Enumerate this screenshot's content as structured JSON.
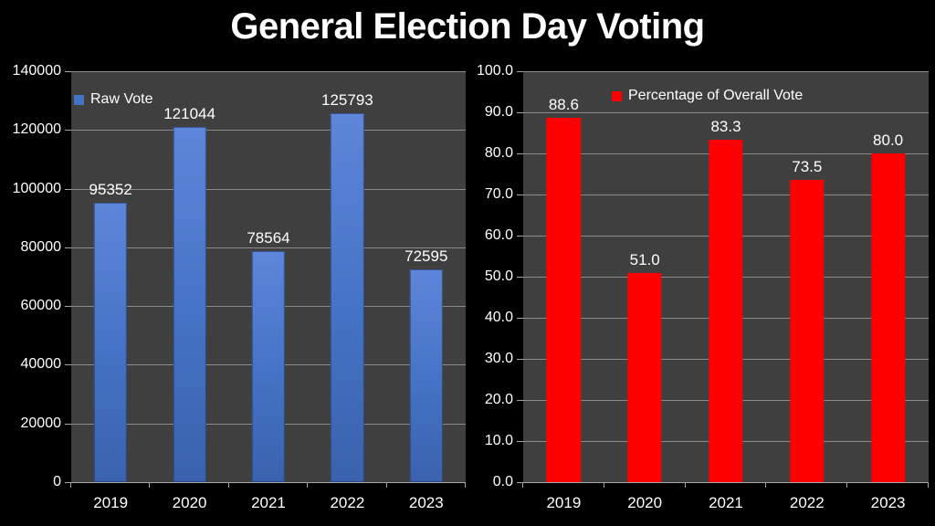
{
  "title": "General Election Day Voting",
  "colors": {
    "background": "#000000",
    "plot_background": "#3f3f3f",
    "gridline": "#8c8c8c",
    "axis": "#a6a6a6",
    "text": "#ffffff",
    "raw_vote_blue": "#4472c4",
    "percentage_red": "#ff0000"
  },
  "chart_data": [
    {
      "type": "bar",
      "name": "raw-vote",
      "legend_label": "Raw Vote",
      "legend_position": "top-left",
      "categories": [
        "2019",
        "2020",
        "2021",
        "2022",
        "2023"
      ],
      "values": [
        95352,
        121044,
        78564,
        125793,
        72595
      ],
      "value_labels": [
        "95352",
        "121044",
        "78564",
        "125793",
        "72595"
      ],
      "xlabel": "",
      "ylabel": "",
      "ylim": [
        0,
        140000
      ],
      "ytick_step": 20000,
      "ytick_labels": [
        "0",
        "20000",
        "40000",
        "60000",
        "80000",
        "100000",
        "120000",
        "140000"
      ],
      "grid": true,
      "fill": {
        "type": "gradient",
        "from": "#5e86da",
        "mid": "#4472c4",
        "to": "#3a62ae",
        "border": "rgba(28,49,92,0.55)"
      }
    },
    {
      "type": "bar",
      "name": "percentage-of-overall-vote",
      "legend_label": "Percentage of Overall Vote",
      "legend_position": "top-center",
      "categories": [
        "2019",
        "2020",
        "2021",
        "2022",
        "2023"
      ],
      "values": [
        88.6,
        51.0,
        83.3,
        73.5,
        80.0
      ],
      "value_labels": [
        "88.6",
        "51.0",
        "83.3",
        "73.5",
        "80.0"
      ],
      "xlabel": "",
      "ylabel": "",
      "ylim": [
        0,
        100
      ],
      "ytick_step": 10,
      "ytick_labels": [
        "0.0",
        "10.0",
        "20.0",
        "30.0",
        "40.0",
        "50.0",
        "60.0",
        "70.0",
        "80.0",
        "90.0",
        "100.0"
      ],
      "grid": true,
      "fill": {
        "type": "solid",
        "color": "#ff0000"
      }
    }
  ]
}
